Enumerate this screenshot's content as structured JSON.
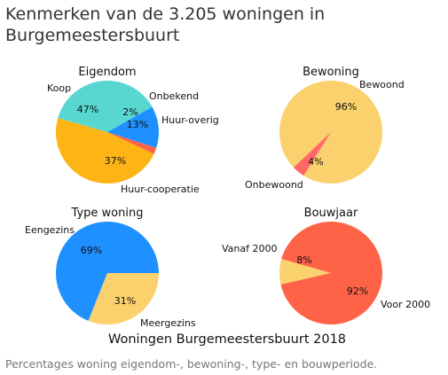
{
  "title": "Kenmerken van de 3.205 woningen in Burgemeestersbuurt",
  "caption": "Percentages woning eigendom-, bewoning-, type- en bouwperiode.",
  "figure_title": "Woningen Burgemeestersbuurt 2018",
  "chart_data": [
    {
      "type": "pie",
      "title": "Eigendom",
      "slices": [
        {
          "label": "Koop",
          "value": 47,
          "pct": "47%",
          "color": "#FDB515"
        },
        {
          "label": "Onbekend",
          "value": 2,
          "pct": "2%",
          "color": "#FF6347"
        },
        {
          "label": "Huur-overig",
          "value": 13,
          "pct": "13%",
          "color": "#1E90FF"
        },
        {
          "label": "Huur-cooperatie",
          "value": 37,
          "pct": "37%",
          "color": "#58D6D0"
        }
      ]
    },
    {
      "type": "pie",
      "title": "Bewoning",
      "slices": [
        {
          "label": "Bewoond",
          "value": 96,
          "pct": "96%",
          "color": "#FAD16C"
        },
        {
          "label": "Onbewoond",
          "value": 4,
          "pct": "4%",
          "color": "#FF6868"
        }
      ]
    },
    {
      "type": "pie",
      "title": "Type woning",
      "slices": [
        {
          "label": "Eengezins",
          "value": 69,
          "pct": "69%",
          "color": "#1E90FF"
        },
        {
          "label": "Meergezins",
          "value": 31,
          "pct": "31%",
          "color": "#FAD16C"
        }
      ]
    },
    {
      "type": "pie",
      "title": "Bouwjaar",
      "slices": [
        {
          "label": "Vanaf 2000",
          "value": 8,
          "pct": "8%",
          "color": "#FAD16C"
        },
        {
          "label": "Voor 2000",
          "value": 92,
          "pct": "92%",
          "color": "#FF6347"
        }
      ]
    }
  ]
}
